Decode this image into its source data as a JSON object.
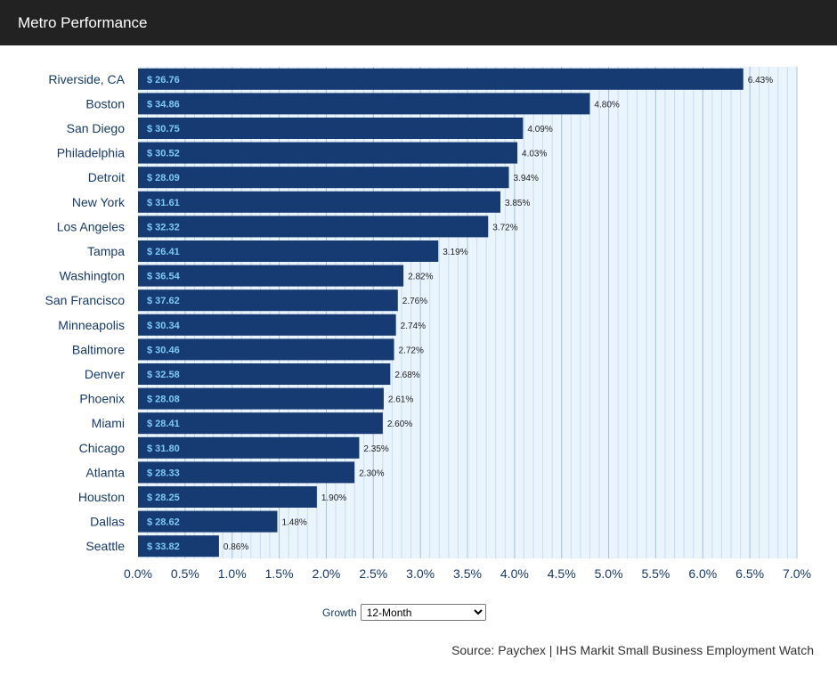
{
  "header": {
    "title": "Metro Performance"
  },
  "controls": {
    "growth_label": "Growth",
    "growth_selected": "12-Month"
  },
  "source": "Source: Paychex | IHS Markit Small Business Employment Watch",
  "colors": {
    "bar": "#163a72",
    "wage_label": "#7ecbf5",
    "plot_bg": "#eaf4fd",
    "major_grid": "#a9c4df",
    "minor_grid": "#c9ddef",
    "axis_text": "#173a6e"
  },
  "chart_data": {
    "type": "bar",
    "orientation": "horizontal",
    "categories": [
      "Riverside, CA",
      "Boston",
      "San Diego",
      "Philadelphia",
      "Detroit",
      "New York",
      "Los Angeles",
      "Tampa",
      "Washington",
      "San Francisco",
      "Minneapolis",
      "Baltimore",
      "Denver",
      "Phoenix",
      "Miami",
      "Chicago",
      "Atlanta",
      "Houston",
      "Dallas",
      "Seattle"
    ],
    "values": [
      6.43,
      4.8,
      4.09,
      4.03,
      3.94,
      3.85,
      3.72,
      3.19,
      2.82,
      2.76,
      2.74,
      2.72,
      2.68,
      2.61,
      2.6,
      2.35,
      2.3,
      1.9,
      1.48,
      0.86
    ],
    "value_labels": [
      "6.43%",
      "4.80%",
      "4.09%",
      "4.03%",
      "3.94%",
      "3.85%",
      "3.72%",
      "3.19%",
      "2.82%",
      "2.76%",
      "2.74%",
      "2.72%",
      "2.68%",
      "2.61%",
      "2.60%",
      "2.35%",
      "2.30%",
      "1.90%",
      "1.48%",
      "0.86%"
    ],
    "wage_labels": [
      "$ 26.76",
      "$ 34.86",
      "$ 30.75",
      "$ 30.52",
      "$ 28.09",
      "$ 31.61",
      "$ 32.32",
      "$ 26.41",
      "$ 36.54",
      "$ 37.62",
      "$ 30.34",
      "$ 30.46",
      "$ 32.58",
      "$ 28.08",
      "$ 28.41",
      "$ 31.80",
      "$ 28.33",
      "$ 28.25",
      "$ 28.62",
      "$ 33.82"
    ],
    "xlim": [
      0,
      7
    ],
    "x_ticks": [
      "0.0%",
      "0.5%",
      "1.0%",
      "1.5%",
      "2.0%",
      "2.5%",
      "3.0%",
      "3.5%",
      "4.0%",
      "4.5%",
      "5.0%",
      "5.5%",
      "6.0%",
      "6.5%",
      "7.0%"
    ],
    "major_grid_step": 0.5,
    "minor_grid_step": 0.1,
    "grid": true,
    "legend": "none",
    "title": "",
    "xlabel": "",
    "ylabel": ""
  }
}
